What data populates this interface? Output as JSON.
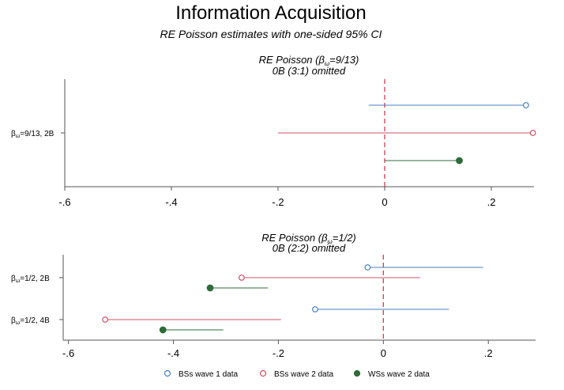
{
  "title": "Information Acquisition",
  "subtitle": "RE Poisson estimates with one-sided 95% CI",
  "colors": {
    "bs_wave1": "#4a7fc0",
    "bs_wave2": "#d05060",
    "ws_wave2": "#2e6b38",
    "zero_line": "#c83040",
    "axis": "#555555"
  },
  "legend": [
    {
      "label": "BSs wave 1 data",
      "marker": "hollow-circle",
      "color": "#4a7fc0"
    },
    {
      "label": "BSs wave 2 data",
      "marker": "hollow-circle",
      "color": "#d05060"
    },
    {
      "label": "WSs wave 2 data",
      "marker": "filled-circle",
      "color": "#2e6b38"
    }
  ],
  "chart_data": [
    {
      "type": "scatter",
      "title": "RE Poisson (β",
      "title_sub": "ω",
      "title_tail": "=9/13)",
      "note": "0B (3:1) omitted",
      "xlim": [
        -0.6,
        0.28
      ],
      "xticks": [
        -0.6,
        -0.4,
        -0.2,
        0,
        0.2
      ],
      "xtick_labels": [
        "-.6",
        "-.4",
        "-.2",
        "0",
        ".2"
      ],
      "rows": [
        {
          "label": "β",
          "label_sub": "ω",
          "label_tail": "=9/13, 2B",
          "estimates": [
            {
              "series": "BSs wave 1 data",
              "point": 0.265,
              "ci": [
                -0.03,
                0.265
              ],
              "filled": false
            },
            {
              "series": "BSs wave 2 data",
              "point": 0.278,
              "ci": [
                -0.2,
                0.278
              ],
              "filled": false
            },
            {
              "series": "WSs wave 2 data",
              "point": 0.14,
              "ci": [
                0.0,
                0.14
              ],
              "filled": true
            }
          ]
        }
      ]
    },
    {
      "type": "scatter",
      "title": "RE Poisson (β",
      "title_sub": "ω",
      "title_tail": "=1/2)",
      "note": "0B (2:2) omitted",
      "xlim": [
        -0.61,
        0.29
      ],
      "xticks": [
        -0.6,
        -0.4,
        -0.2,
        0,
        0.2
      ],
      "xtick_labels": [
        "-.6",
        "-.4",
        "-.2",
        "0",
        ".2"
      ],
      "rows": [
        {
          "label": "β",
          "label_sub": "ω",
          "label_tail": "=1/2, 2B",
          "estimates": [
            {
              "series": "BSs wave 1 data",
              "point": -0.03,
              "ci": [
                -0.03,
                0.19
              ],
              "filled": false
            },
            {
              "series": "BSs wave 2 data",
              "point": -0.27,
              "ci": [
                -0.27,
                0.07
              ],
              "filled": false
            },
            {
              "series": "WSs wave 2 data",
              "point": -0.33,
              "ci": [
                -0.33,
                -0.22
              ],
              "filled": true
            }
          ]
        },
        {
          "label": "β",
          "label_sub": "ω",
          "label_tail": "=1/2, 4B",
          "estimates": [
            {
              "series": "BSs wave 1 data",
              "point": -0.13,
              "ci": [
                -0.13,
                0.125
              ],
              "filled": false
            },
            {
              "series": "BSs wave 2 data",
              "point": -0.53,
              "ci": [
                -0.53,
                -0.195
              ],
              "filled": false
            },
            {
              "series": "WSs wave 2 data",
              "point": -0.42,
              "ci": [
                -0.42,
                -0.305
              ],
              "filled": true
            }
          ]
        }
      ]
    }
  ]
}
